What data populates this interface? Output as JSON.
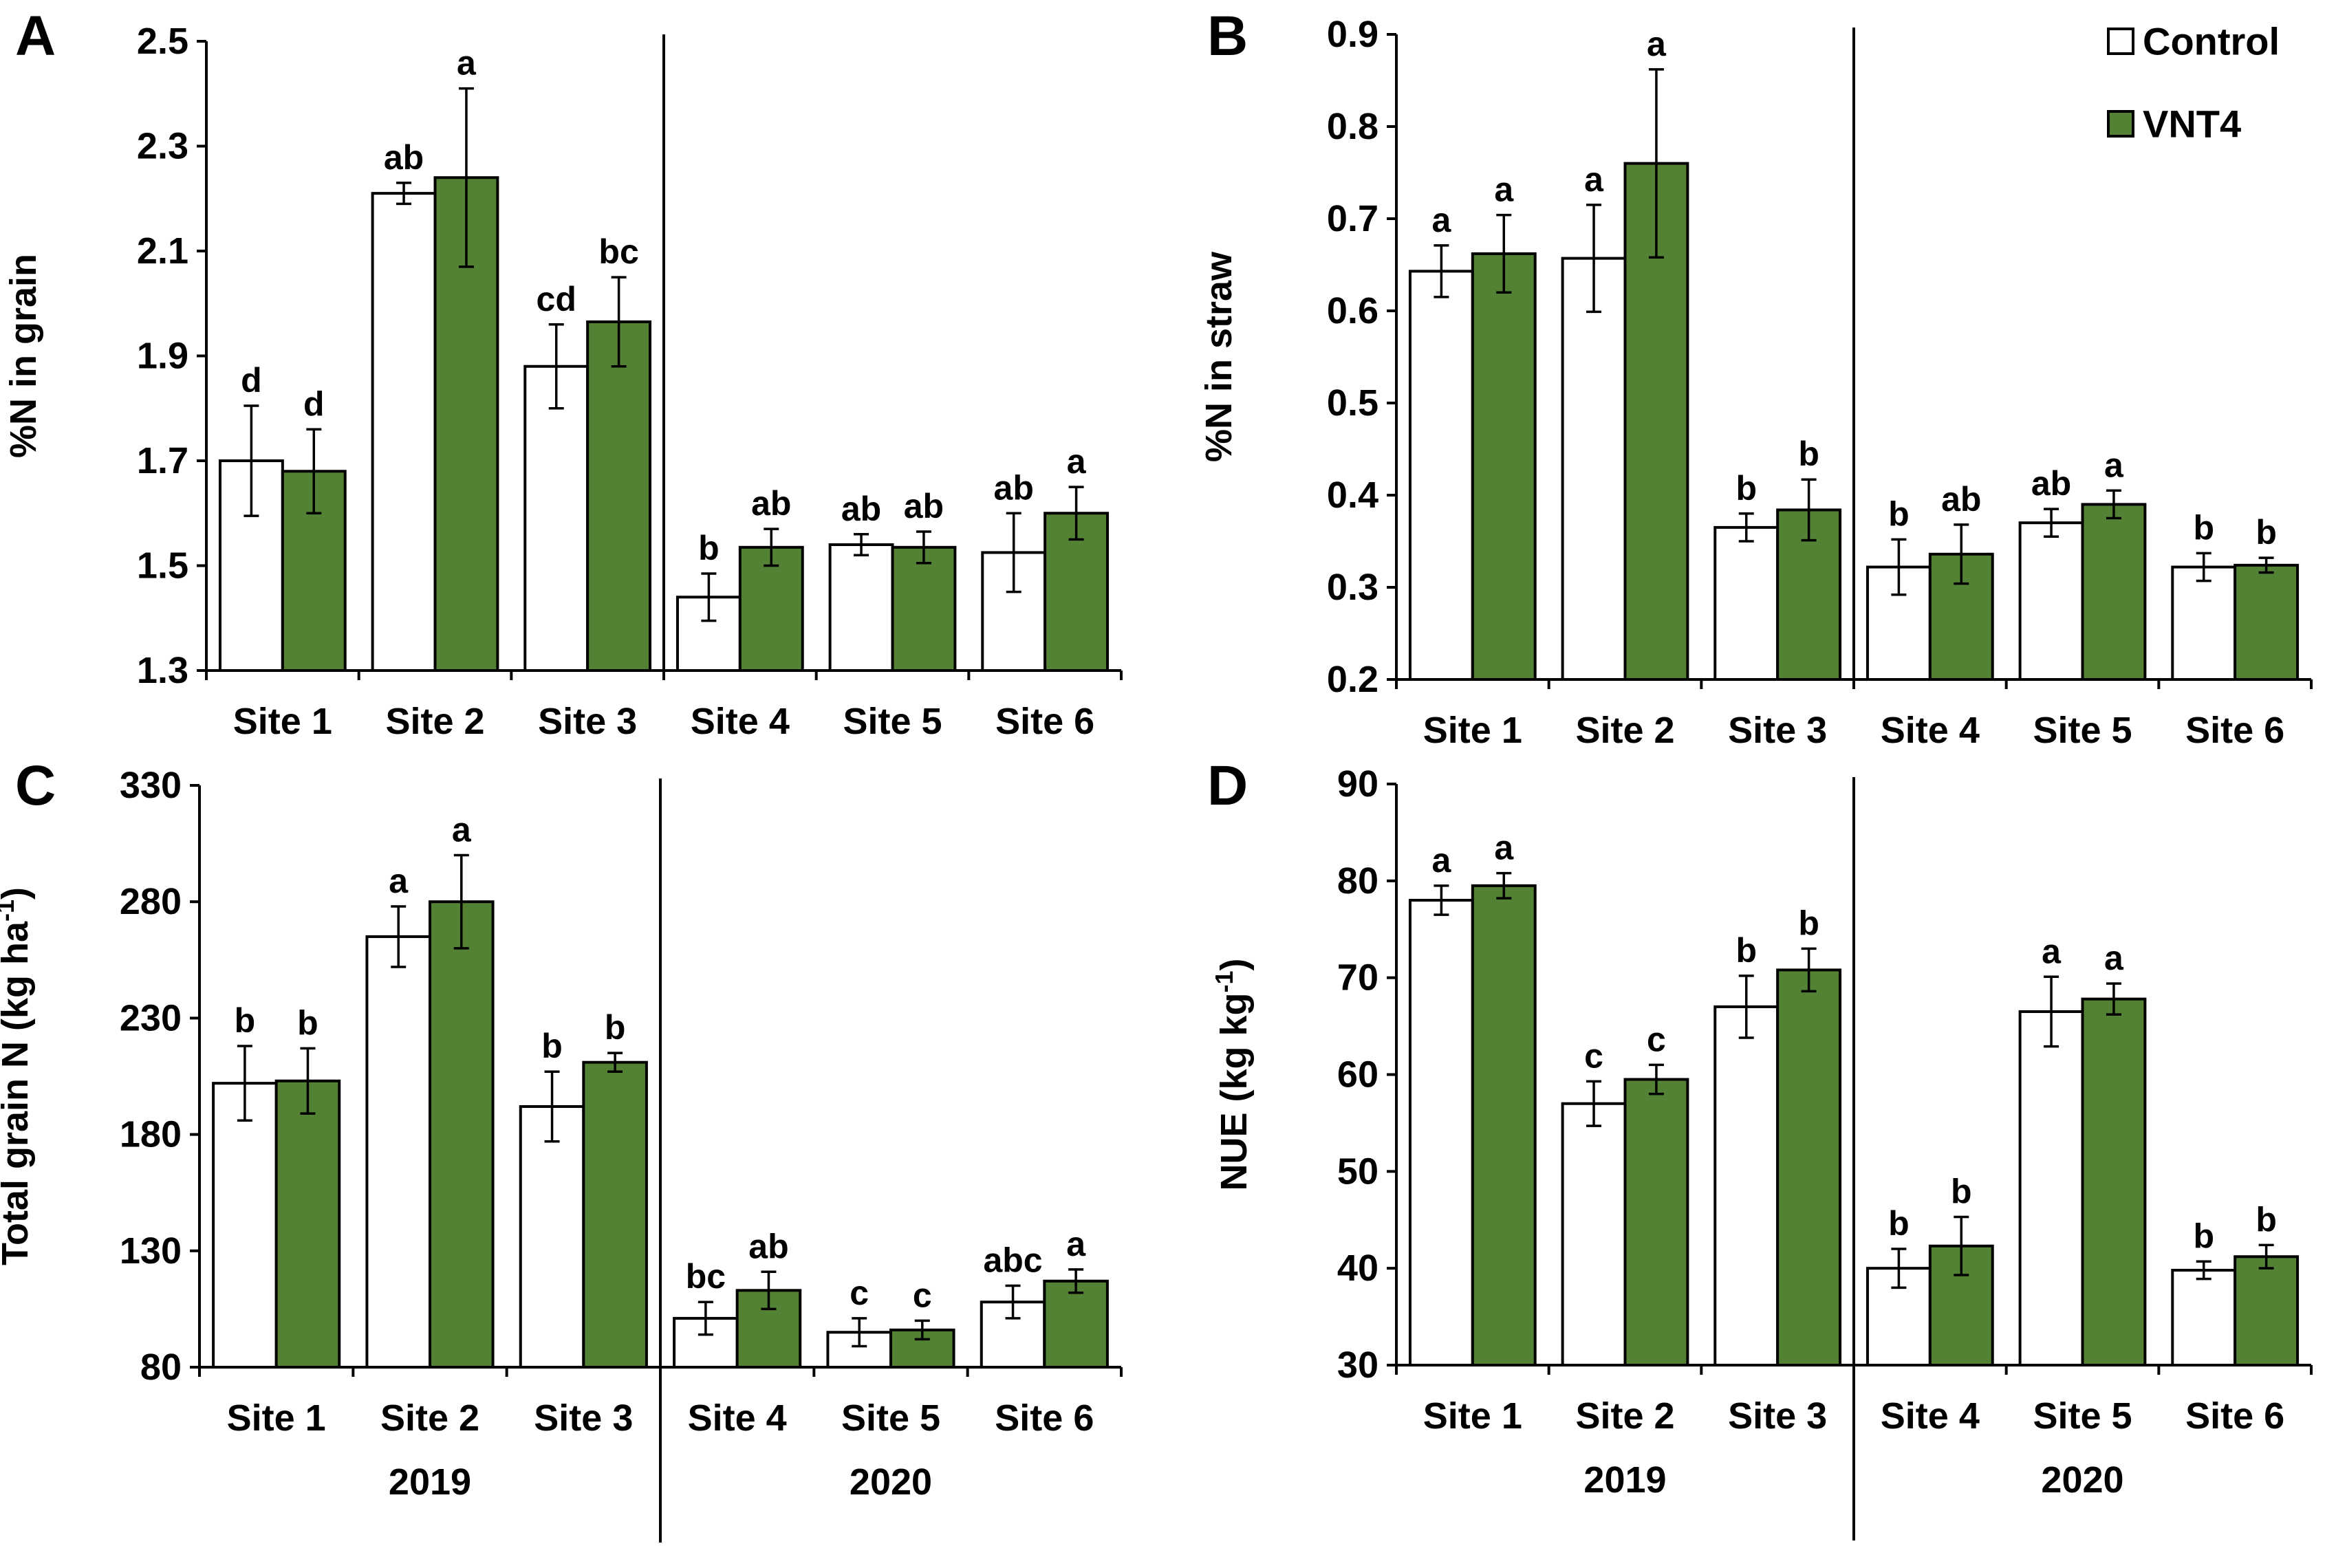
{
  "legend": {
    "control_label": "Control",
    "vnt4_label": "VNT4"
  },
  "colors": {
    "control": "#ffffff",
    "vnt4": "#548235"
  },
  "chart_data": [
    {
      "panel": "A",
      "type": "bar",
      "ylabel": "%N in grain",
      "ylim": [
        1.3,
        2.5
      ],
      "yticks": [
        "1.3",
        "1.5",
        "1.7",
        "1.9",
        "2.1",
        "2.3",
        "2.5"
      ],
      "categories": [
        "Site 1",
        "Site 2",
        "Site 3",
        "Site 4",
        "Site 5",
        "Site 6"
      ],
      "groups": [
        {
          "label": "2019",
          "sites": [
            0,
            1,
            2
          ]
        },
        {
          "label": "2020",
          "sites": [
            3,
            4,
            5
          ]
        }
      ],
      "series": [
        {
          "name": "Control",
          "values": [
            1.7,
            2.21,
            1.88,
            1.44,
            1.54,
            1.525
          ],
          "errors": [
            0.105,
            0.02,
            0.08,
            0.045,
            0.02,
            0.075
          ],
          "labels": [
            "d",
            "ab",
            "cd",
            "b",
            "ab",
            "ab"
          ]
        },
        {
          "name": "VNT4",
          "values": [
            1.68,
            2.24,
            1.965,
            1.535,
            1.535,
            1.6
          ],
          "errors": [
            0.08,
            0.17,
            0.085,
            0.035,
            0.03,
            0.05
          ],
          "labels": [
            "d",
            "a",
            "bc",
            "ab",
            "ab",
            "a"
          ]
        }
      ]
    },
    {
      "panel": "B",
      "type": "bar",
      "ylabel": "%N in straw",
      "ylim": [
        0.2,
        0.9
      ],
      "yticks": [
        "0.2",
        "0.3",
        "0.4",
        "0.5",
        "0.6",
        "0.7",
        "0.8",
        "0.9"
      ],
      "categories": [
        "Site 1",
        "Site 2",
        "Site 3",
        "Site 4",
        "Site 5",
        "Site 6"
      ],
      "groups": [
        {
          "label": "2019",
          "sites": [
            0,
            1,
            2
          ]
        },
        {
          "label": "2020",
          "sites": [
            3,
            4,
            5
          ]
        }
      ],
      "series": [
        {
          "name": "Control",
          "values": [
            0.643,
            0.657,
            0.365,
            0.322,
            0.37,
            0.322
          ],
          "errors": [
            0.028,
            0.058,
            0.015,
            0.03,
            0.015,
            0.015
          ],
          "labels": [
            "a",
            "a",
            "b",
            "b",
            "ab",
            "b"
          ]
        },
        {
          "name": "VNT4",
          "values": [
            0.662,
            0.76,
            0.384,
            0.336,
            0.39,
            0.324
          ],
          "errors": [
            0.042,
            0.102,
            0.033,
            0.032,
            0.015,
            0.008
          ],
          "labels": [
            "a",
            "a",
            "b",
            "ab",
            "a",
            "b"
          ]
        }
      ]
    },
    {
      "panel": "C",
      "type": "bar",
      "ylabel": "Total grain N (kg ha",
      "ylabel_sup": "-1",
      "ylabel_end": ")",
      "ylim": [
        80,
        330
      ],
      "yticks": [
        "80",
        "130",
        "180",
        "230",
        "280",
        "330"
      ],
      "categories": [
        "Site 1",
        "Site 2",
        "Site 3",
        "Site 4",
        "Site 5",
        "Site 6"
      ],
      "x_group_labels": [
        "2019",
        "2020"
      ],
      "groups": [
        {
          "label": "2019",
          "sites": [
            0,
            1,
            2
          ]
        },
        {
          "label": "2020",
          "sites": [
            3,
            4,
            5
          ]
        }
      ],
      "series": [
        {
          "name": "Control",
          "values": [
            202,
            265,
            192,
            101,
            95,
            108
          ],
          "errors": [
            16,
            13,
            15,
            7,
            6,
            7
          ],
          "labels": [
            "b",
            "a",
            "b",
            "bc",
            "c",
            "abc"
          ]
        },
        {
          "name": "VNT4",
          "values": [
            203,
            280,
            211,
            113,
            96,
            117
          ],
          "errors": [
            14,
            20,
            4,
            8,
            4,
            5
          ],
          "labels": [
            "b",
            "a",
            "b",
            "ab",
            "c",
            "a"
          ]
        }
      ]
    },
    {
      "panel": "D",
      "type": "bar",
      "ylabel": "NUE (kg kg",
      "ylabel_sup": "-1",
      "ylabel_end": ")",
      "ylim": [
        30,
        90
      ],
      "yticks": [
        "30",
        "40",
        "50",
        "60",
        "70",
        "80",
        "90"
      ],
      "categories": [
        "Site 1",
        "Site 2",
        "Site 3",
        "Site 4",
        "Site 5",
        "Site 6"
      ],
      "x_group_labels": [
        "2019",
        "2020"
      ],
      "groups": [
        {
          "label": "2019",
          "sites": [
            0,
            1,
            2
          ]
        },
        {
          "label": "2020",
          "sites": [
            3,
            4,
            5
          ]
        }
      ],
      "series": [
        {
          "name": "Control",
          "values": [
            78,
            57,
            67,
            40,
            66.5,
            39.8
          ],
          "errors": [
            1.5,
            2.3,
            3.2,
            2,
            3.6,
            0.9
          ],
          "labels": [
            "a",
            "c",
            "b",
            "b",
            "a",
            "b"
          ]
        },
        {
          "name": "VNT4",
          "values": [
            79.5,
            59.5,
            70.8,
            42.3,
            67.8,
            41.2
          ],
          "errors": [
            1.3,
            1.5,
            2.2,
            3,
            1.6,
            1.2
          ],
          "labels": [
            "a",
            "c",
            "b",
            "b",
            "a",
            "b"
          ]
        }
      ]
    }
  ]
}
